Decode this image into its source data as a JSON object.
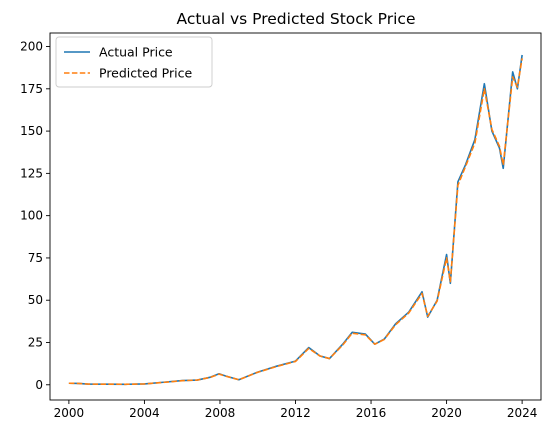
{
  "chart_data": {
    "type": "line",
    "title": "Actual vs Predicted Stock Price",
    "xlabel": "",
    "ylabel": "",
    "xlim": [
      1999.0,
      2025.0
    ],
    "ylim": [
      -9.0,
      208.0
    ],
    "x_ticks": [
      2000,
      2004,
      2008,
      2012,
      2016,
      2020,
      2024
    ],
    "x_tick_labels": [
      "2000",
      "2004",
      "2008",
      "2012",
      "2016",
      "2020",
      "2024"
    ],
    "y_ticks": [
      0,
      25,
      50,
      75,
      100,
      125,
      150,
      175,
      200
    ],
    "y_tick_labels": [
      "0",
      "25",
      "50",
      "75",
      "100",
      "125",
      "150",
      "175",
      "200"
    ],
    "grid": false,
    "legend": {
      "position": "top-left"
    },
    "series": [
      {
        "name": "Actual Price",
        "color": "#1f77b4",
        "style": "solid",
        "points": [
          [
            2000.0,
            0.9
          ],
          [
            2000.5,
            0.8
          ],
          [
            2001.0,
            0.4
          ],
          [
            2002.0,
            0.35
          ],
          [
            2003.0,
            0.3
          ],
          [
            2004.0,
            0.5
          ],
          [
            2005.0,
            1.5
          ],
          [
            2006.0,
            2.5
          ],
          [
            2006.8,
            2.8
          ],
          [
            2007.5,
            4.5
          ],
          [
            2007.95,
            6.5
          ],
          [
            2008.3,
            5.2
          ],
          [
            2009.0,
            3.0
          ],
          [
            2010.0,
            7.5
          ],
          [
            2011.0,
            11.0
          ],
          [
            2012.0,
            14.0
          ],
          [
            2012.7,
            22.0
          ],
          [
            2013.3,
            17.0
          ],
          [
            2013.8,
            15.5
          ],
          [
            2014.5,
            24.0
          ],
          [
            2015.0,
            31.0
          ],
          [
            2015.7,
            30.0
          ],
          [
            2016.2,
            24.0
          ],
          [
            2016.7,
            27.0
          ],
          [
            2017.3,
            36.0
          ],
          [
            2018.0,
            43.0
          ],
          [
            2018.7,
            55.0
          ],
          [
            2019.0,
            40.0
          ],
          [
            2019.5,
            50.0
          ],
          [
            2020.0,
            77.0
          ],
          [
            2020.2,
            60.0
          ],
          [
            2020.6,
            120.0
          ],
          [
            2021.0,
            130.0
          ],
          [
            2021.5,
            145.0
          ],
          [
            2022.0,
            178.0
          ],
          [
            2022.4,
            150.0
          ],
          [
            2022.8,
            140.0
          ],
          [
            2023.0,
            128.0
          ],
          [
            2023.5,
            185.0
          ],
          [
            2023.75,
            175.0
          ],
          [
            2024.0,
            195.0
          ]
        ]
      },
      {
        "name": "Predicted Price",
        "color": "#ff7f0e",
        "style": "dashed",
        "points": [
          [
            2000.0,
            0.9
          ],
          [
            2000.5,
            0.8
          ],
          [
            2001.0,
            0.4
          ],
          [
            2002.0,
            0.35
          ],
          [
            2003.0,
            0.3
          ],
          [
            2004.0,
            0.5
          ],
          [
            2005.0,
            1.4
          ],
          [
            2006.0,
            2.4
          ],
          [
            2006.8,
            2.8
          ],
          [
            2007.5,
            4.4
          ],
          [
            2007.95,
            6.3
          ],
          [
            2008.3,
            5.1
          ],
          [
            2009.0,
            3.0
          ],
          [
            2010.0,
            7.4
          ],
          [
            2011.0,
            10.8
          ],
          [
            2012.0,
            13.8
          ],
          [
            2012.7,
            21.5
          ],
          [
            2013.3,
            17.0
          ],
          [
            2013.8,
            15.5
          ],
          [
            2014.5,
            23.5
          ],
          [
            2015.0,
            30.5
          ],
          [
            2015.7,
            29.5
          ],
          [
            2016.2,
            24.0
          ],
          [
            2016.7,
            26.8
          ],
          [
            2017.3,
            35.5
          ],
          [
            2018.0,
            42.5
          ],
          [
            2018.7,
            54.0
          ],
          [
            2019.0,
            40.5
          ],
          [
            2019.5,
            49.5
          ],
          [
            2020.0,
            75.0
          ],
          [
            2020.2,
            61.0
          ],
          [
            2020.6,
            118.0
          ],
          [
            2021.0,
            129.0
          ],
          [
            2021.5,
            143.0
          ],
          [
            2022.0,
            175.0
          ],
          [
            2022.4,
            151.0
          ],
          [
            2022.8,
            141.0
          ],
          [
            2023.0,
            130.0
          ],
          [
            2023.5,
            182.0
          ],
          [
            2023.75,
            176.0
          ],
          [
            2024.0,
            193.0
          ]
        ]
      }
    ]
  }
}
